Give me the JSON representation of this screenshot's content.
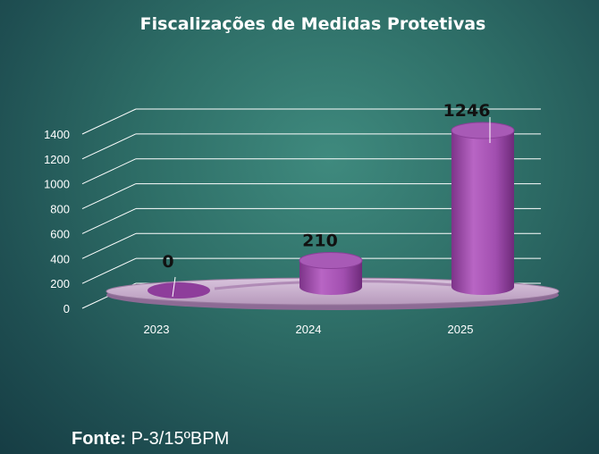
{
  "chart_data": {
    "type": "bar",
    "title": "Fiscalizações de Medidas Protetivas",
    "categories": [
      "2023",
      "2024",
      "2025"
    ],
    "values": [
      0,
      210,
      1246
    ],
    "data_labels": [
      "0",
      "210",
      "1246"
    ],
    "yticks": [
      "0",
      "200",
      "400",
      "600",
      "800",
      "1000",
      "1200",
      "1400"
    ],
    "ylim": [
      0,
      1400
    ],
    "xlabel": "",
    "ylabel": "",
    "grid": true,
    "bar_color": "#a24fb0"
  },
  "source": {
    "label": "Fonte:",
    "value": "P-3/15ºBPM"
  }
}
